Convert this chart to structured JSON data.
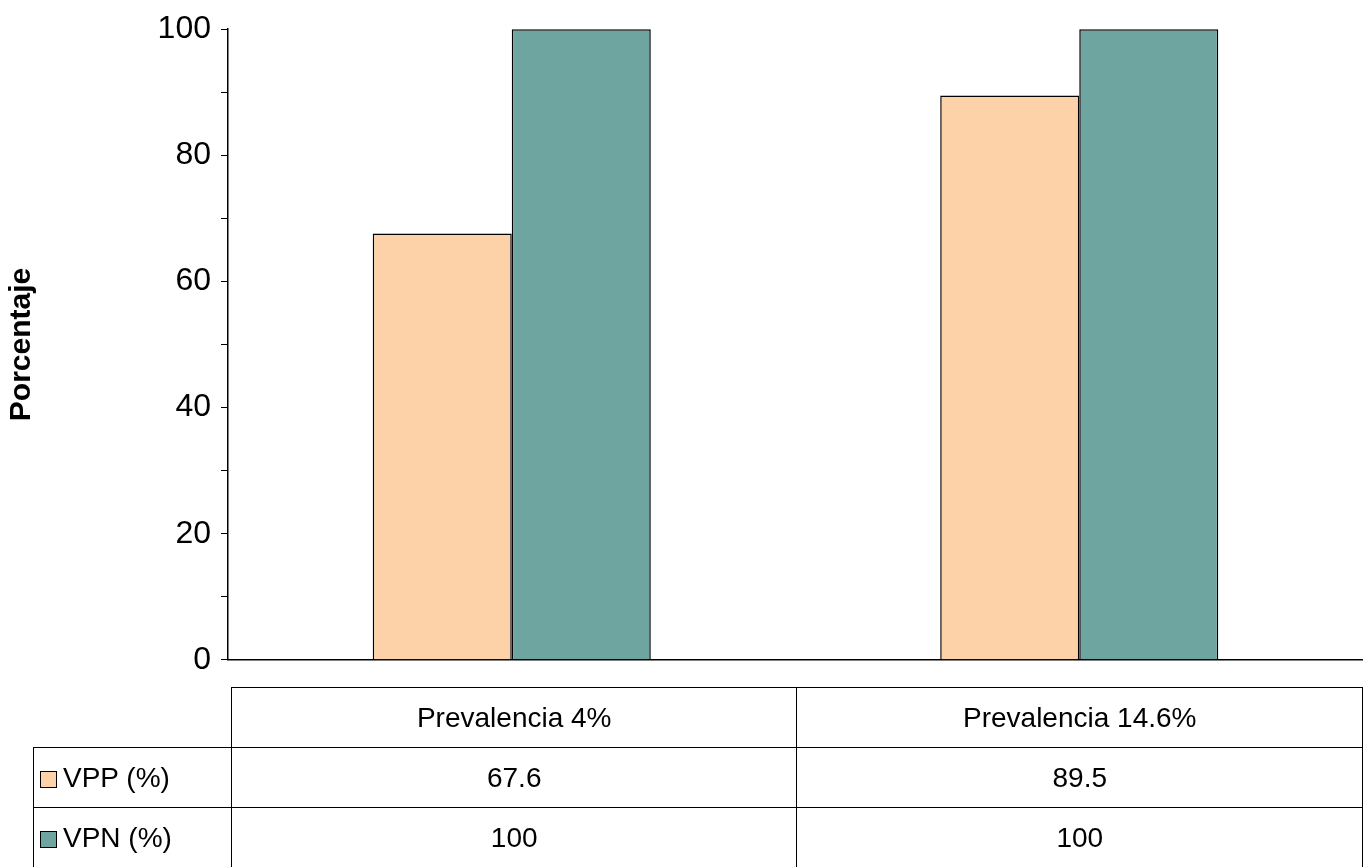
{
  "chart_data": {
    "type": "bar",
    "ylabel": "Porcentaje",
    "categories": [
      "Prevalencia 4%",
      "Prevalencia 14.6%"
    ],
    "series": [
      {
        "name": "VPP (%)",
        "color": "#fdd2a8",
        "values": [
          67.6,
          89.5
        ]
      },
      {
        "name": "VPN (%)",
        "color": "#6fa5a1",
        "values": [
          100,
          100
        ]
      }
    ],
    "ylim": [
      0,
      100
    ],
    "yticks": [
      0,
      {
        "value": 10,
        "label": null
      },
      20,
      {
        "value": 30,
        "label": null
      },
      40,
      {
        "value": 50,
        "label": null
      },
      60,
      {
        "value": 70,
        "label": null
      },
      80,
      {
        "value": 90,
        "label": null
      },
      100
    ],
    "grid": false,
    "legend": "left",
    "data_labels": true
  }
}
